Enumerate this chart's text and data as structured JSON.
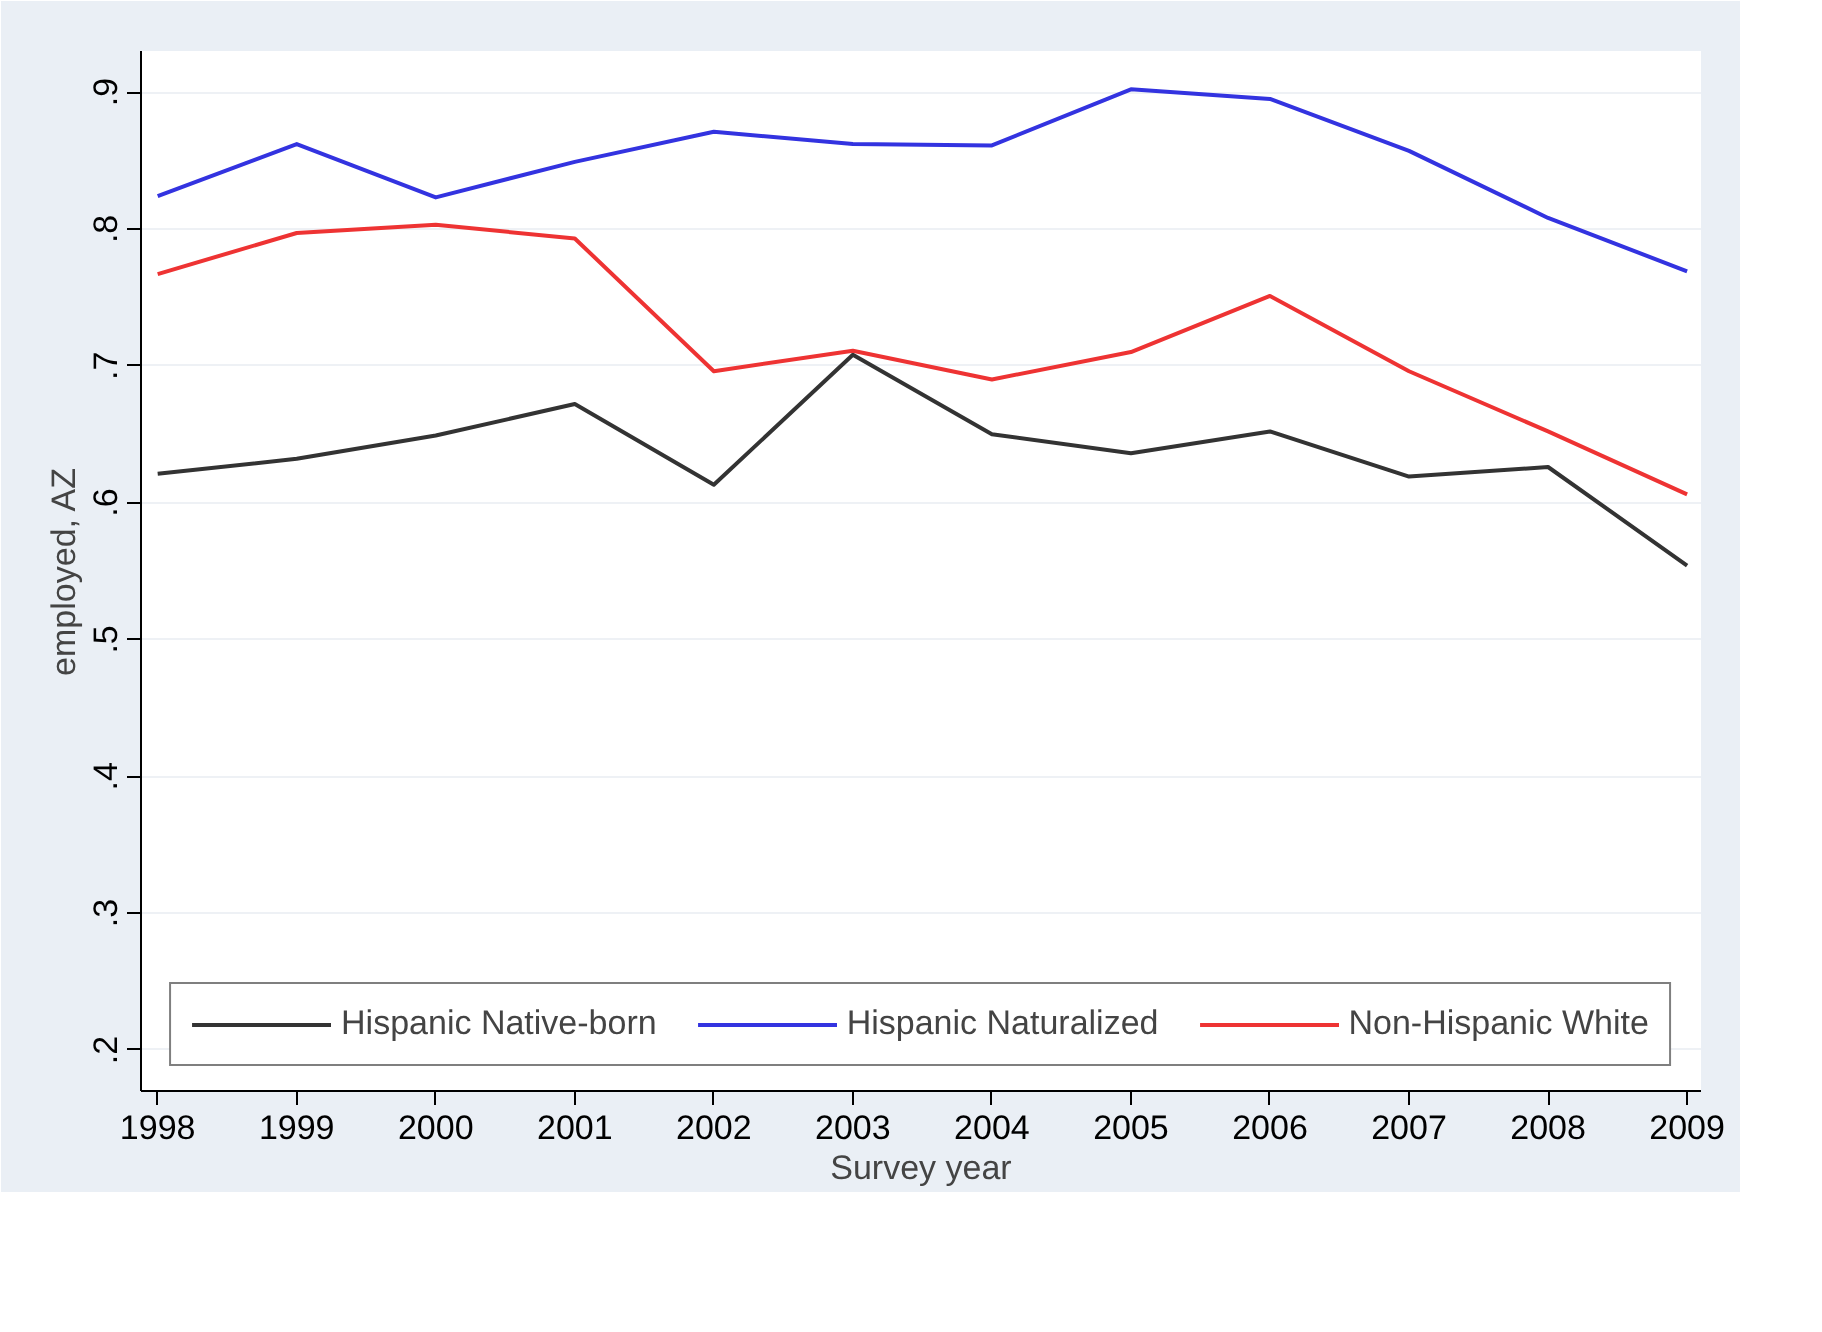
{
  "chart_data": {
    "type": "line",
    "xlabel": "Survey year",
    "ylabel": "employed, AZ",
    "x": [
      1998,
      1999,
      2000,
      2001,
      2002,
      2003,
      2004,
      2005,
      2006,
      2007,
      2008,
      2009
    ],
    "series": [
      {
        "name": "Hispanic Native-born",
        "color": "#333333",
        "values": [
          0.621,
          0.632,
          0.649,
          0.672,
          0.613,
          0.708,
          0.65,
          0.636,
          0.652,
          0.619,
          0.626,
          0.554
        ]
      },
      {
        "name": "Hispanic Naturalized",
        "color": "#3333e0",
        "values": [
          0.824,
          0.862,
          0.823,
          0.849,
          0.871,
          0.862,
          0.861,
          0.902,
          0.895,
          0.857,
          0.808,
          0.769
        ]
      },
      {
        "name": "Non-Hispanic White",
        "color": "#ee3333",
        "values": [
          0.767,
          0.797,
          0.803,
          0.793,
          0.696,
          0.711,
          0.69,
          0.71,
          0.751,
          0.696,
          0.652,
          0.606
        ]
      }
    ],
    "xlim": [
      1997.88,
      2009.1
    ],
    "ylim": [
      0.17,
      0.93
    ],
    "xticks": [
      1998,
      1999,
      2000,
      2001,
      2002,
      2003,
      2004,
      2005,
      2006,
      2007,
      2008,
      2009
    ],
    "yticks": [
      {
        "value": 0.2,
        "label": ".2"
      },
      {
        "value": 0.3,
        "label": ".3"
      },
      {
        "value": 0.4,
        "label": ".4"
      },
      {
        "value": 0.5,
        "label": ".5"
      },
      {
        "value": 0.6,
        "label": ".6"
      },
      {
        "value": 0.7,
        "label": ".7"
      },
      {
        "value": 0.8,
        "label": ".8"
      },
      {
        "value": 0.9,
        "label": ".9"
      }
    ],
    "grid": "y",
    "legend": "bottom",
    "marker": "none",
    "line_style": "solid"
  }
}
